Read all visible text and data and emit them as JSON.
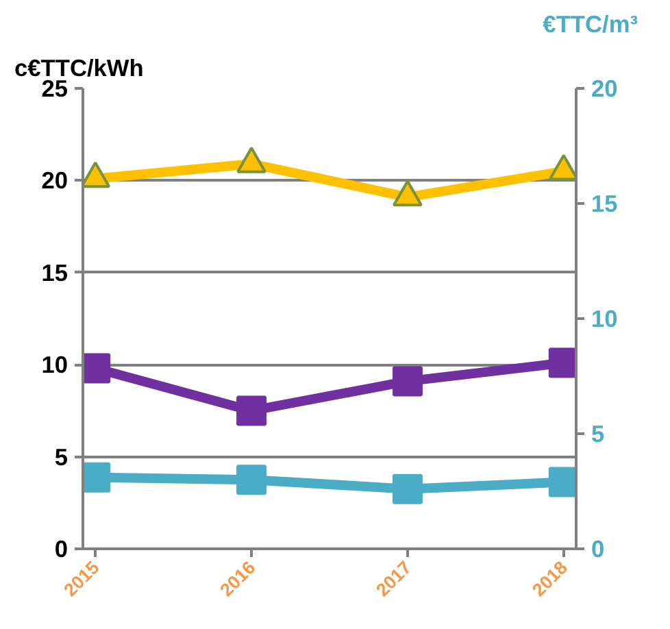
{
  "chart_data": {
    "type": "line",
    "ylabel": "c€TTC/kWh",
    "y2label": "€TTC/m³",
    "categories": [
      "2015",
      "2016",
      "2017",
      "2018"
    ],
    "series": [
      {
        "color": "#ffc000",
        "values": [
          20.1,
          20.9,
          19.1,
          20.5
        ],
        "marker": "triangle"
      },
      {
        "color": "#7030a0",
        "values": [
          9.8,
          7.5,
          9.1,
          10.1
        ],
        "marker": "square"
      },
      {
        "color": "#4bacc6",
        "values": [
          3.1,
          3.0,
          2.6,
          2.9
        ],
        "marker": "square",
        "axis": "y2"
      }
    ],
    "ylim": [
      0,
      25
    ],
    "yticks": [
      0,
      5,
      10,
      15,
      20,
      25
    ],
    "y2lim": [
      0,
      20
    ],
    "y2ticks": [
      0,
      5,
      10,
      15,
      20
    ],
    "grid": "y"
  }
}
